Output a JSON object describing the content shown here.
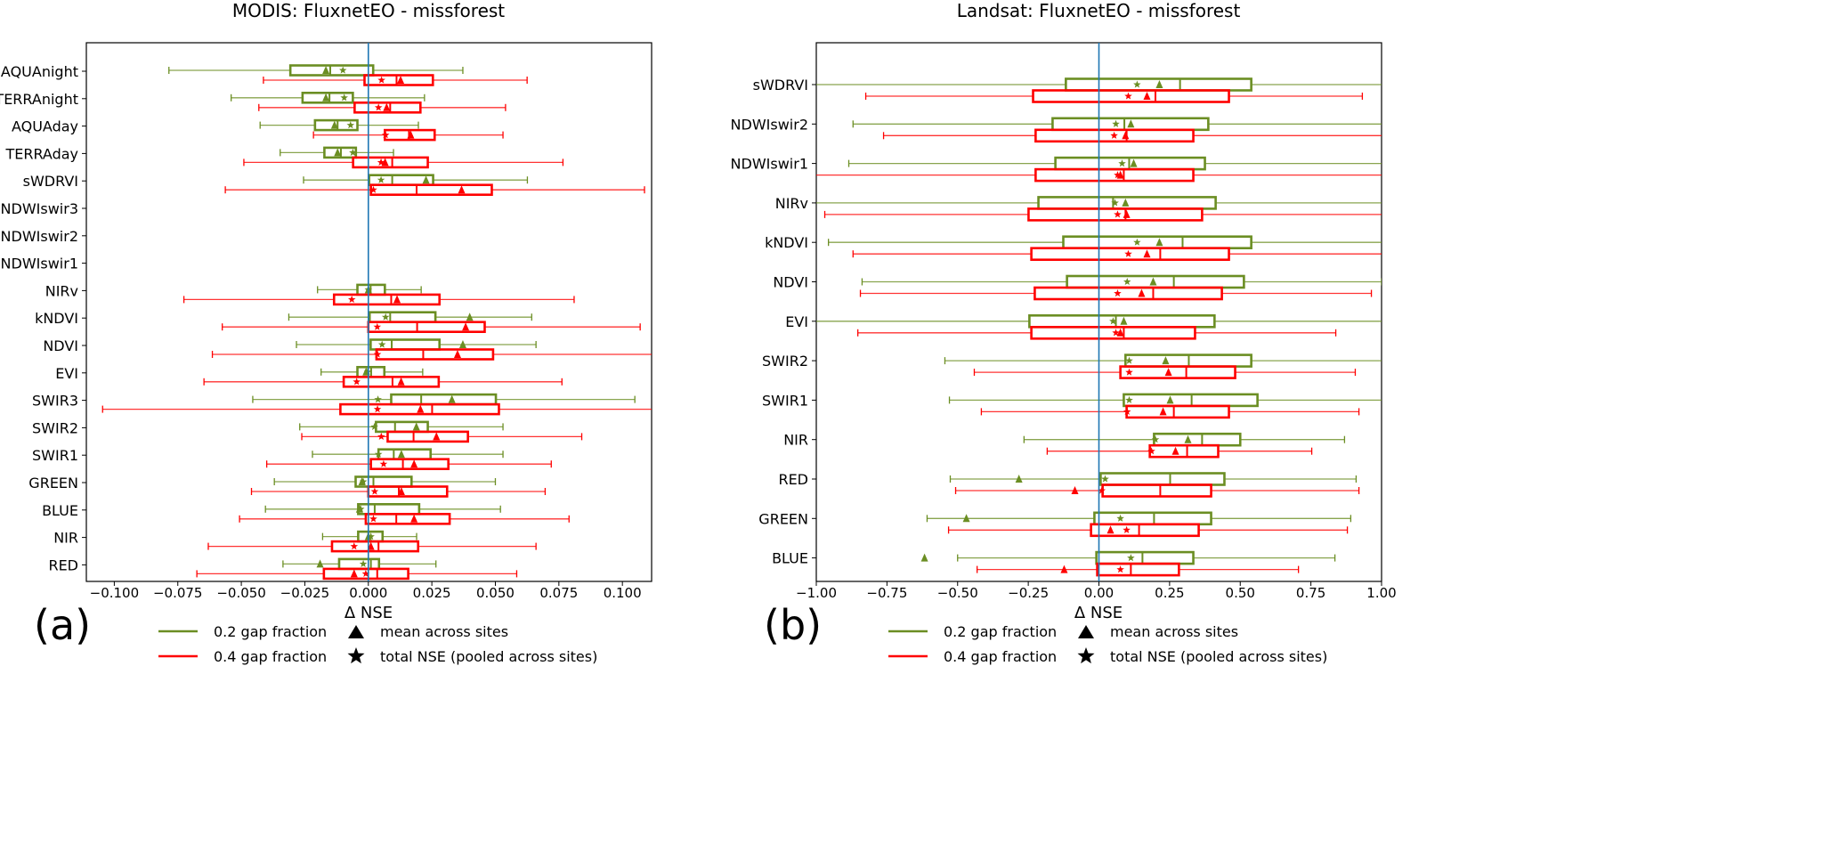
{
  "chart_data": [
    {
      "type": "boxplot-horizontal",
      "panel_label": "(a)",
      "title": "MODIS: FluxnetEO - missforest",
      "xlabel": "Δ NSE",
      "ylabel": "",
      "xlim": [
        -0.111,
        0.1115
      ],
      "xticks": [
        -0.1,
        -0.075,
        -0.05,
        -0.025,
        0,
        0.025,
        0.05,
        0.075,
        0.1
      ],
      "xtick_labels": [
        "−0.100",
        "−0.075",
        "−0.050",
        "−0.025",
        "0.000",
        "0.025",
        "0.050",
        "0.075",
        "0.100"
      ],
      "reference_line": 0,
      "fields": [
        "whisker_low",
        "q1",
        "median",
        "q3",
        "whisker_high",
        "mean",
        "total_nse"
      ],
      "categories": [
        "AQUAnight",
        "TERRAnight",
        "AQUAday",
        "TERRAday",
        "sWDRVI",
        "NDWIswir3",
        "NDWIswir2",
        "NDWIswir1",
        "NIRv",
        "kNDVI",
        "NDVI",
        "EVI",
        "SWIR3",
        "SWIR2",
        "SWIR1",
        "GREEN",
        "BLUE",
        "NIR",
        "RED"
      ],
      "series": [
        {
          "name": "0.2 gap fraction",
          "color": "#6b8e23",
          "stats": [
            [
              -0.0785,
              -0.0307,
              -0.015,
              0.0019,
              0.0372,
              -0.0167,
              -0.01
            ],
            [
              -0.054,
              -0.0259,
              -0.0153,
              -0.0061,
              0.0221,
              -0.0167,
              -0.0095
            ],
            [
              -0.0426,
              -0.021,
              -0.0121,
              -0.0043,
              0.0197,
              -0.0133,
              -0.007
            ],
            [
              -0.0347,
              -0.0173,
              -0.0108,
              -0.0049,
              0.0099,
              -0.0121,
              -0.0061
            ],
            [
              -0.0255,
              0.0003,
              0.0094,
              0.0255,
              0.0626,
              0.0227,
              0.005
            ],
            null,
            null,
            null,
            [
              -0.02,
              -0.0043,
              0.0009,
              0.0065,
              0.0208,
              0.0,
              0.0
            ],
            [
              -0.0313,
              0.0005,
              0.0086,
              0.0264,
              0.0643,
              0.0399,
              0.0068
            ],
            [
              -0.0283,
              0.0009,
              0.0092,
              0.028,
              0.066,
              0.0372,
              0.0054
            ],
            [
              -0.0186,
              -0.0043,
              0.0011,
              0.0063,
              0.0214,
              -0.0009,
              -0.0003
            ],
            [
              -0.0455,
              0.009,
              0.0208,
              0.0502,
              0.1049,
              0.0329,
              0.0038
            ],
            [
              -0.027,
              0.003,
              0.0105,
              0.0234,
              0.053,
              0.0189,
              0.0024
            ],
            [
              -0.022,
              0.004,
              0.01,
              0.0245,
              0.053,
              0.013,
              0.004
            ],
            [
              -0.037,
              -0.005,
              0.002,
              0.017,
              0.05,
              -0.0025,
              -0.002
            ],
            [
              -0.0405,
              -0.004,
              0.0025,
              0.02,
              0.052,
              -0.0035,
              -0.003
            ],
            [
              -0.018,
              -0.004,
              0.0,
              0.0056,
              0.019,
              0.0,
              0.001
            ],
            [
              -0.0336,
              -0.0115,
              0.001,
              0.0042,
              0.0266,
              -0.019,
              -0.002
            ]
          ]
        },
        {
          "name": "0.4 gap fraction",
          "color": "#ff0000",
          "stats": [
            [
              -0.0413,
              -0.0015,
              0.0111,
              0.0254,
              0.0625,
              0.0127,
              0.0052
            ],
            [
              -0.0431,
              -0.0054,
              0.0086,
              0.0205,
              0.054,
              0.0072,
              0.004
            ],
            [
              -0.0216,
              0.0065,
              0.016,
              0.0261,
              0.053,
              0.0167,
              0.0068
            ],
            [
              -0.049,
              -0.006,
              0.0094,
              0.0234,
              0.0766,
              0.0066,
              0.005
            ],
            [
              -0.0563,
              0.001,
              0.019,
              0.0486,
              0.1087,
              0.0367,
              0.002
            ],
            null,
            null,
            null,
            [
              -0.0726,
              -0.0135,
              0.009,
              0.028,
              0.081,
              0.0113,
              -0.0065
            ],
            [
              -0.0575,
              0.0,
              0.0192,
              0.0458,
              0.107,
              0.0383,
              0.0035
            ],
            [
              -0.0614,
              0.0032,
              0.0216,
              0.0491,
              0.112,
              0.0351,
              0.0036
            ],
            [
              -0.0647,
              -0.0097,
              0.0095,
              0.0277,
              0.0762,
              0.0129,
              -0.0046
            ],
            [
              -0.1046,
              -0.011,
              0.0251,
              0.0514,
              0.115,
              0.0205,
              0.0036
            ],
            [
              -0.0262,
              0.0076,
              0.0178,
              0.0392,
              0.084,
              0.0268,
              0.0051
            ],
            [
              -0.04,
              0.001,
              0.0136,
              0.0315,
              0.072,
              0.018,
              0.006
            ],
            [
              -0.046,
              0.0,
              0.012,
              0.031,
              0.0696,
              0.013,
              0.0025
            ],
            [
              -0.0507,
              -0.001,
              0.011,
              0.032,
              0.079,
              0.018,
              0.002
            ],
            [
              -0.063,
              -0.0143,
              0.004,
              0.0196,
              0.066,
              0.001,
              -0.0056
            ],
            [
              -0.0675,
              -0.0175,
              0.0035,
              0.0157,
              0.0584,
              -0.0056,
              -0.001
            ]
          ]
        }
      ]
    },
    {
      "type": "boxplot-horizontal",
      "panel_label": "(b)",
      "title": "Landsat: FluxnetEO - missforest",
      "xlabel": "Δ NSE",
      "ylabel": "",
      "xlim": [
        -1.0,
        1.0
      ],
      "xticks": [
        -1,
        -0.75,
        -0.5,
        -0.25,
        0,
        0.25,
        0.5,
        0.75,
        1
      ],
      "xtick_labels": [
        "−1.00",
        "−0.75",
        "−0.50",
        "−0.25",
        "0.00",
        "0.25",
        "0.50",
        "0.75",
        "1.00"
      ],
      "reference_line": 0,
      "fields": [
        "whisker_low",
        "q1",
        "median",
        "q3",
        "whisker_high",
        "mean",
        "total_nse"
      ],
      "categories": [
        "sWDRVI",
        "NDWIswir2",
        "NDWIswir1",
        "NIRv",
        "kNDVI",
        "NDVI",
        "EVI",
        "SWIR2",
        "SWIR1",
        "NIR",
        "RED",
        "GREEN",
        "BLUE"
      ],
      "series": [
        {
          "name": "0.2 gap fraction",
          "color": "#6b8e23",
          "stats": [
            [
              -1.1,
              -0.117,
              0.287,
              0.539,
              1.1,
              0.214,
              0.135
            ],
            [
              -0.87,
              -0.164,
              0.09,
              0.387,
              1.1,
              0.113,
              0.06
            ],
            [
              -0.885,
              -0.154,
              0.107,
              0.375,
              1.1,
              0.123,
              0.082
            ],
            [
              -1.1,
              -0.214,
              0.05,
              0.413,
              1.1,
              0.094,
              0.057
            ],
            [
              -0.957,
              -0.126,
              0.296,
              0.539,
              1.1,
              0.214,
              0.135
            ],
            [
              -0.838,
              -0.113,
              0.265,
              0.513,
              1.0,
              0.192,
              0.1
            ],
            [
              -1.1,
              -0.246,
              0.06,
              0.409,
              1.1,
              0.088,
              0.05
            ],
            [
              -0.545,
              0.094,
              0.318,
              0.539,
              1.1,
              0.236,
              0.107
            ],
            [
              -0.529,
              0.088,
              0.328,
              0.561,
              1.1,
              0.252,
              0.107
            ],
            [
              -0.265,
              0.195,
              0.365,
              0.5,
              0.869,
              0.315,
              0.2
            ],
            [
              -0.526,
              0.006,
              0.252,
              0.444,
              0.91,
              -0.283,
              0.022
            ],
            [
              -0.608,
              -0.016,
              0.195,
              0.397,
              0.891,
              -0.469,
              0.076
            ],
            [
              -0.5,
              -0.009,
              0.154,
              0.334,
              0.835,
              -0.617,
              0.113
            ]
          ]
        },
        {
          "name": "0.4 gap fraction",
          "color": "#ff0000",
          "stats": [
            [
              -0.825,
              -0.233,
              0.2,
              0.46,
              0.932,
              0.17,
              0.104
            ],
            [
              -0.762,
              -0.224,
              0.098,
              0.334,
              1.1,
              0.094,
              0.054
            ],
            [
              -1.1,
              -0.224,
              0.088,
              0.334,
              1.1,
              0.076,
              0.066
            ],
            [
              -0.97,
              -0.249,
              0.094,
              0.365,
              1.1,
              0.098,
              0.066
            ],
            [
              -0.87,
              -0.239,
              0.217,
              0.46,
              1.1,
              0.17,
              0.104
            ],
            [
              -0.844,
              -0.227,
              0.192,
              0.435,
              0.964,
              0.151,
              0.066
            ],
            [
              -0.853,
              -0.239,
              0.088,
              0.34,
              0.838,
              0.076,
              0.06
            ],
            [
              -0.441,
              0.076,
              0.309,
              0.482,
              0.907,
              0.246,
              0.107
            ],
            [
              -0.416,
              0.098,
              0.265,
              0.46,
              0.92,
              0.227,
              0.1
            ],
            [
              -0.183,
              0.18,
              0.312,
              0.422,
              0.753,
              0.271,
              0.186
            ],
            [
              -0.507,
              0.013,
              0.217,
              0.397,
              0.92,
              -0.085,
              0.01
            ],
            [
              -0.532,
              -0.028,
              0.142,
              0.353,
              0.879,
              0.041,
              0.098
            ],
            [
              -0.431,
              -0.006,
              0.113,
              0.283,
              0.706,
              -0.123,
              0.076
            ]
          ]
        }
      ]
    }
  ],
  "legend": {
    "series": [
      "0.2 gap fraction",
      "0.4 gap fraction"
    ],
    "markers": [
      "mean across sites",
      "total NSE (pooled across sites)"
    ]
  },
  "colors": {
    "reference_line": "#1f77b4",
    "series_a": "#6b8e23",
    "series_b": "#ff0000"
  }
}
